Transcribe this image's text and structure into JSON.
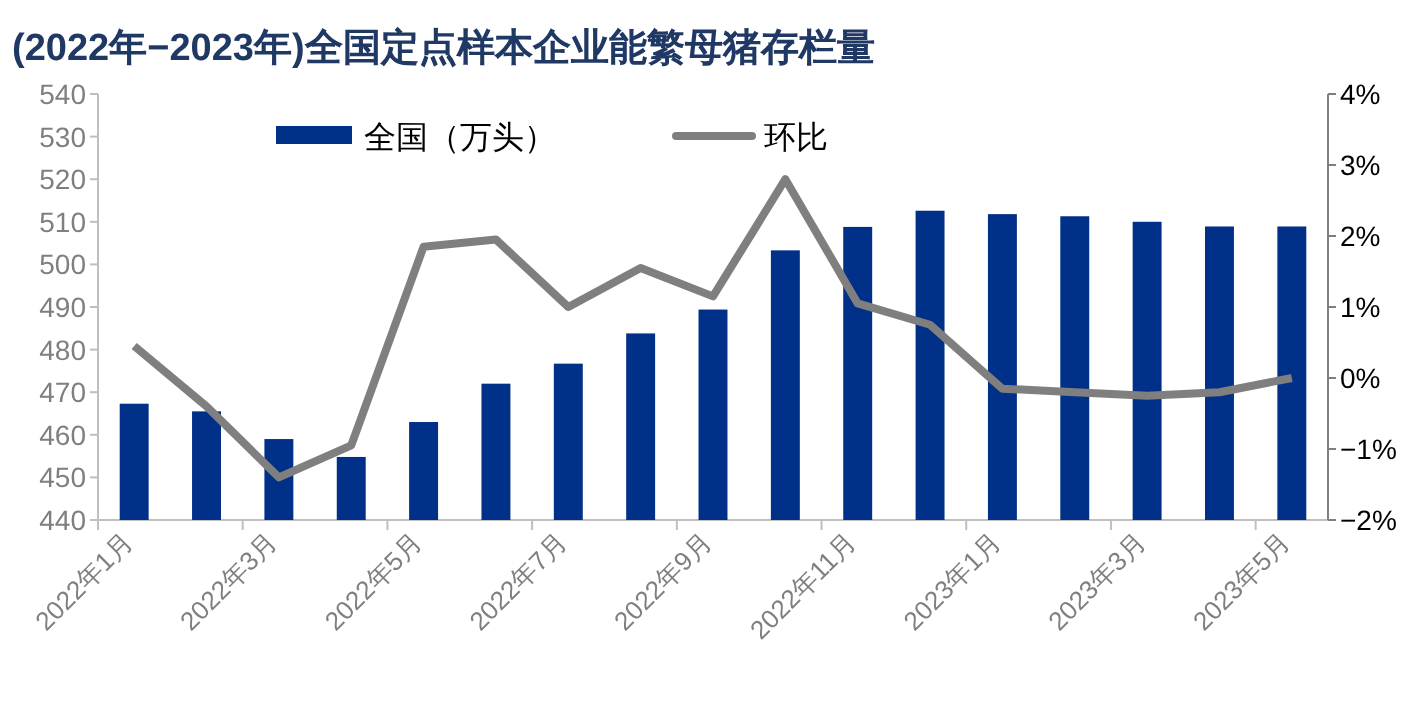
{
  "chart_data": {
    "type": "bar",
    "title": "(2022年−2023年)全国定点样本企业能繁母猪存栏量",
    "categories": [
      "2022年1月",
      null,
      "2022年3月",
      null,
      "2022年5月",
      null,
      "2022年7月",
      null,
      "2022年9月",
      null,
      "2022年11月",
      null,
      "2023年1月",
      null,
      "2023年3月",
      null,
      "2023年5月"
    ],
    "series": [
      {
        "name": "全国（万头）",
        "color": "#003087",
        "values": [
          467.3,
          465.5,
          459,
          454.8,
          463,
          472,
          476.7,
          483.8,
          489.4,
          503.3,
          508.8,
          512.6,
          511.8,
          511.3,
          510,
          508.9,
          508.9
        ]
      },
      {
        "name": "环比",
        "type": "line",
        "axis": "y2",
        "color": "#7f7f7f",
        "values": [
          0.45,
          -0.4,
          -1.4,
          -0.95,
          1.85,
          1.95,
          1.0,
          1.55,
          1.15,
          2.8,
          1.05,
          0.75,
          -0.15,
          -0.2,
          -0.25,
          -0.2,
          0.0
        ]
      }
    ],
    "ylim": [
      440,
      540
    ],
    "yticks": [
      440,
      450,
      460,
      470,
      480,
      490,
      500,
      510,
      520,
      530,
      540
    ],
    "y2lim": [
      -2,
      4
    ],
    "y2ticks": [
      {
        "value": -2,
        "label": "−2%"
      },
      {
        "value": -1,
        "label": "−1%"
      },
      {
        "value": 0,
        "label": "0%"
      },
      {
        "value": 1,
        "label": "1%"
      },
      {
        "value": 2,
        "label": "2%"
      },
      {
        "value": 3,
        "label": "3%"
      },
      {
        "value": 4,
        "label": "4%"
      }
    ],
    "grid": false,
    "legend": "top",
    "marker": "none",
    "line_style": "solid"
  }
}
